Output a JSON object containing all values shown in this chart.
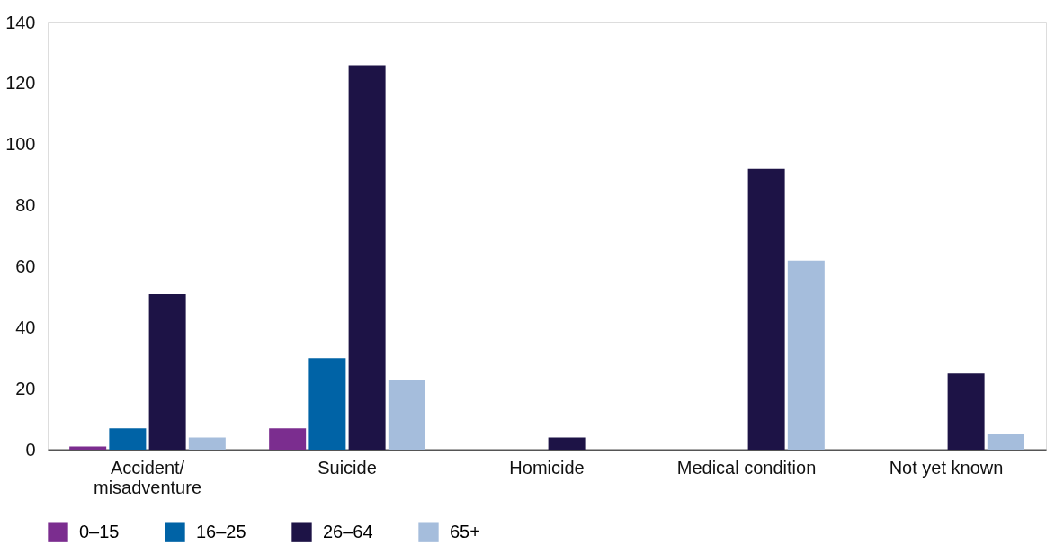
{
  "chart_data": {
    "type": "bar",
    "categories": [
      "Accident/\nmisadventure",
      "Suicide",
      "Homicide",
      "Medical condition",
      "Not yet known"
    ],
    "series": [
      {
        "name": "0–15",
        "color": "#7b2d8f",
        "values": [
          1,
          7,
          0,
          0,
          0
        ]
      },
      {
        "name": "16–25",
        "color": "#0063a6",
        "values": [
          7,
          30,
          0,
          0,
          0
        ]
      },
      {
        "name": "26–64",
        "color": "#1d1346",
        "values": [
          51,
          126,
          4,
          92,
          25
        ]
      },
      {
        "name": "65+",
        "color": "#a5bddc",
        "values": [
          4,
          23,
          0,
          62,
          5
        ]
      }
    ],
    "ylim": [
      0,
      140
    ],
    "yticks": [
      0,
      20,
      40,
      60,
      80,
      100,
      120,
      140
    ],
    "grid": false,
    "legend": "bottom left"
  }
}
